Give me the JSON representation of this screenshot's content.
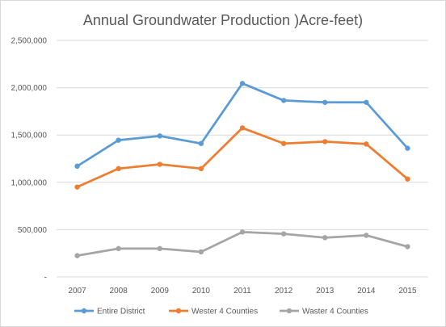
{
  "chart_data": {
    "type": "line",
    "title": "Annual Groundwater Production )Acre-feet)",
    "xlabel": "",
    "ylabel": "",
    "categories": [
      "2007",
      "2008",
      "2009",
      "2010",
      "2011",
      "2012",
      "2013",
      "2014",
      "2015"
    ],
    "ylim": [
      0,
      2500000
    ],
    "yticks": [
      0,
      500000,
      1000000,
      1500000,
      2000000,
      2500000
    ],
    "ytick_labels": [
      "-",
      "500,000",
      "1,000,000",
      "1,500,000",
      "2,000,000",
      "2,500,000"
    ],
    "grid": true,
    "legend_position": "bottom",
    "series": [
      {
        "name": "Entire District",
        "color": "#5b9bd5",
        "values": [
          1170000,
          1445000,
          1490000,
          1410000,
          2045000,
          1865000,
          1845000,
          1845000,
          1360000
        ]
      },
      {
        "name": "Wester 4 Counties",
        "color": "#ed7d31",
        "values": [
          950000,
          1145000,
          1190000,
          1145000,
          1575000,
          1410000,
          1430000,
          1405000,
          1035000
        ]
      },
      {
        "name": "Waster 4 Counties",
        "color": "#a5a5a5",
        "values": [
          225000,
          300000,
          300000,
          265000,
          475000,
          455000,
          415000,
          440000,
          320000
        ]
      }
    ]
  }
}
